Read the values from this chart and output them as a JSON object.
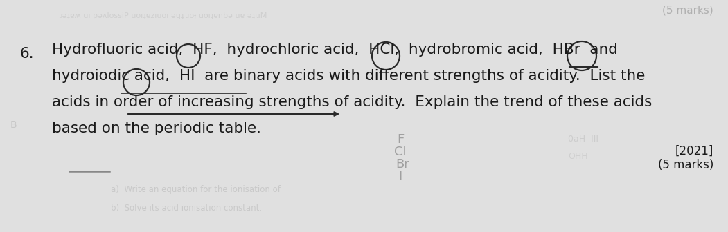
{
  "bg_color": "#e0e0e0",
  "question_number": "6.",
  "line1": "Hydrofluoric acid,  HF,  hydrochloric acid,  HCl,  hydrobromic acid,  HBr  and",
  "line2": "hydroiodic acid,  HI  are binary acids with different strengths of acidity.  List the",
  "line3": "acids in order of increasing strengths of acidity.  Explain the trend of these acids",
  "line4": "based on the periodic table.",
  "year_text": "[2021]",
  "marks_text": "(5 marks)",
  "top_marks": "(5 marks)",
  "main_font_size": 15.5,
  "text_color": "#1a1a1a",
  "faded_color": "#b0b0b0",
  "very_faded": "#c8c8c8"
}
